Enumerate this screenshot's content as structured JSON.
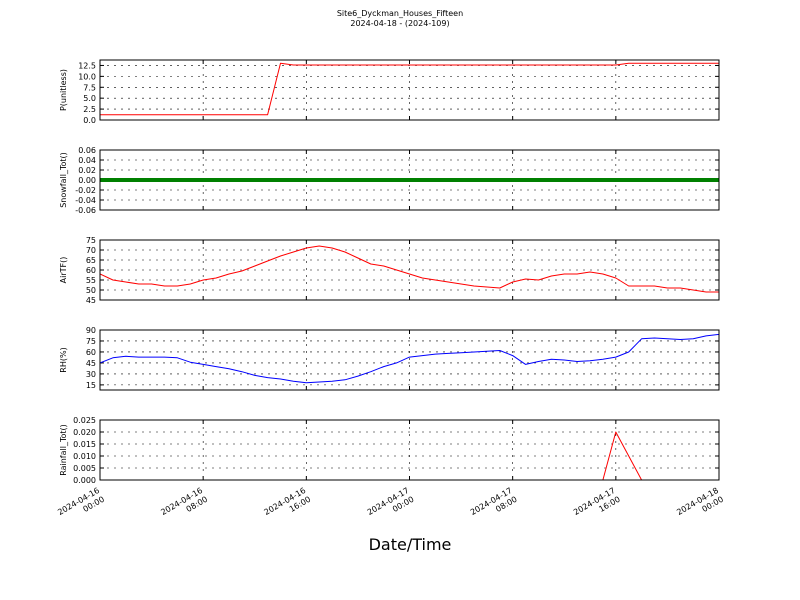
{
  "chart_data": [
    {
      "type": "line",
      "title": "Site6_Dyckman_Houses_Fifteen",
      "subtitle": "2024-04-18 - (2024-109)",
      "ylabel": "P(unitless)",
      "ylim": [
        0,
        13.75
      ],
      "yticks": [
        {
          "value": 0,
          "label": "0.0"
        },
        2.5,
        {
          "value": 5,
          "label": "5.0"
        },
        7.5,
        {
          "value": 10,
          "label": "10.0"
        },
        12.5
      ],
      "grid": true,
      "x": [
        "2024-04-16 00:00",
        "2024-04-16 01:00",
        "2024-04-16 02:00",
        "2024-04-16 03:00",
        "2024-04-16 04:00",
        "2024-04-16 05:00",
        "2024-04-16 06:00",
        "2024-04-16 07:00",
        "2024-04-16 08:00",
        "2024-04-16 09:00",
        "2024-04-16 10:00",
        "2024-04-16 11:00",
        "2024-04-16 12:00",
        "2024-04-16 13:00",
        "2024-04-16 14:00",
        "2024-04-16 15:00",
        "2024-04-16 16:00",
        "2024-04-16 17:00",
        "2024-04-16 18:00",
        "2024-04-16 19:00",
        "2024-04-16 20:00",
        "2024-04-16 21:00",
        "2024-04-16 22:00",
        "2024-04-16 23:00",
        "2024-04-17 00:00",
        "2024-04-17 01:00",
        "2024-04-17 02:00",
        "2024-04-17 03:00",
        "2024-04-17 04:00",
        "2024-04-17 05:00",
        "2024-04-17 06:00",
        "2024-04-17 07:00",
        "2024-04-17 08:00",
        "2024-04-17 09:00",
        "2024-04-17 10:00",
        "2024-04-17 11:00",
        "2024-04-17 12:00",
        "2024-04-17 13:00",
        "2024-04-17 14:00",
        "2024-04-17 15:00",
        "2024-04-17 16:00",
        "2024-04-17 17:00",
        "2024-04-17 18:00",
        "2024-04-17 19:00",
        "2024-04-17 20:00",
        "2024-04-17 21:00",
        "2024-04-17 22:00",
        "2024-04-17 23:00",
        "2024-04-18 00:00"
      ],
      "series": [
        {
          "color": "#ff0000",
          "values": [
            1.2,
            1.2,
            1.2,
            1.2,
            1.2,
            1.2,
            1.2,
            1.2,
            1.2,
            1.2,
            1.2,
            1.2,
            1.2,
            1.2,
            13.0,
            12.6,
            12.6,
            12.6,
            12.6,
            12.6,
            12.6,
            12.6,
            12.6,
            12.6,
            12.6,
            12.6,
            12.6,
            12.6,
            12.6,
            12.6,
            12.6,
            12.6,
            12.6,
            12.6,
            12.6,
            12.6,
            12.6,
            12.6,
            12.6,
            12.6,
            12.6,
            13.0,
            13.0,
            13.0,
            13.0,
            13.0,
            13.0,
            13.0,
            13.0
          ]
        }
      ]
    },
    {
      "type": "line",
      "ylabel": "Snowfall_Tot()",
      "ylim": [
        -0.06,
        0.06
      ],
      "yticks": [
        -0.06,
        -0.04,
        -0.02,
        {
          "value": 0,
          "label": "0.00"
        },
        0.02,
        0.04,
        0.06
      ],
      "grid": true,
      "x": [
        "2024-04-16 00:00",
        "2024-04-16 01:00",
        "2024-04-16 02:00",
        "2024-04-16 03:00",
        "2024-04-16 04:00",
        "2024-04-16 05:00",
        "2024-04-16 06:00",
        "2024-04-16 07:00",
        "2024-04-16 08:00",
        "2024-04-16 09:00",
        "2024-04-16 10:00",
        "2024-04-16 11:00",
        "2024-04-16 12:00",
        "2024-04-16 13:00",
        "2024-04-16 14:00",
        "2024-04-16 15:00",
        "2024-04-16 16:00",
        "2024-04-16 17:00",
        "2024-04-16 18:00",
        "2024-04-16 19:00",
        "2024-04-16 20:00",
        "2024-04-16 21:00",
        "2024-04-16 22:00",
        "2024-04-16 23:00",
        "2024-04-17 00:00",
        "2024-04-17 01:00",
        "2024-04-17 02:00",
        "2024-04-17 03:00",
        "2024-04-17 04:00",
        "2024-04-17 05:00",
        "2024-04-17 06:00",
        "2024-04-17 07:00",
        "2024-04-17 08:00",
        "2024-04-17 09:00",
        "2024-04-17 10:00",
        "2024-04-17 11:00",
        "2024-04-17 12:00",
        "2024-04-17 13:00",
        "2024-04-17 14:00",
        "2024-04-17 15:00",
        "2024-04-17 16:00",
        "2024-04-17 17:00",
        "2024-04-17 18:00",
        "2024-04-17 19:00",
        "2024-04-17 20:00",
        "2024-04-17 21:00",
        "2024-04-17 22:00",
        "2024-04-17 23:00",
        "2024-04-18 00:00"
      ],
      "series": [
        {
          "color": "#008000",
          "values": [
            0,
            0,
            0,
            0,
            0,
            0,
            0,
            0,
            0,
            0,
            0,
            0,
            0,
            0,
            0,
            0,
            0,
            0,
            0,
            0,
            0,
            0,
            0,
            0,
            0,
            0,
            0,
            0,
            0,
            0,
            0,
            0,
            0,
            0,
            0,
            0,
            0,
            0,
            0,
            0,
            0,
            0,
            0,
            0,
            0,
            0,
            0,
            0,
            0
          ]
        }
      ]
    },
    {
      "type": "line",
      "ylabel": "AirTF()",
      "ylim": [
        45,
        75
      ],
      "yticks": [
        45,
        50,
        55,
        60,
        65,
        70,
        75
      ],
      "grid": true,
      "x": [
        "2024-04-16 00:00",
        "2024-04-16 01:00",
        "2024-04-16 02:00",
        "2024-04-16 03:00",
        "2024-04-16 04:00",
        "2024-04-16 05:00",
        "2024-04-16 06:00",
        "2024-04-16 07:00",
        "2024-04-16 08:00",
        "2024-04-16 09:00",
        "2024-04-16 10:00",
        "2024-04-16 11:00",
        "2024-04-16 12:00",
        "2024-04-16 13:00",
        "2024-04-16 14:00",
        "2024-04-16 15:00",
        "2024-04-16 16:00",
        "2024-04-16 17:00",
        "2024-04-16 18:00",
        "2024-04-16 19:00",
        "2024-04-16 20:00",
        "2024-04-16 21:00",
        "2024-04-16 22:00",
        "2024-04-16 23:00",
        "2024-04-17 00:00",
        "2024-04-17 01:00",
        "2024-04-17 02:00",
        "2024-04-17 03:00",
        "2024-04-17 04:00",
        "2024-04-17 05:00",
        "2024-04-17 06:00",
        "2024-04-17 07:00",
        "2024-04-17 08:00",
        "2024-04-17 09:00",
        "2024-04-17 10:00",
        "2024-04-17 11:00",
        "2024-04-17 12:00",
        "2024-04-17 13:00",
        "2024-04-17 14:00",
        "2024-04-17 15:00",
        "2024-04-17 16:00",
        "2024-04-17 17:00",
        "2024-04-17 18:00",
        "2024-04-17 19:00",
        "2024-04-17 20:00",
        "2024-04-17 21:00",
        "2024-04-17 22:00",
        "2024-04-17 23:00",
        "2024-04-18 00:00"
      ],
      "series": [
        {
          "color": "#ff0000",
          "values": [
            58,
            55,
            54,
            53,
            53,
            52,
            52,
            53,
            55,
            56,
            58,
            59.5,
            62,
            64.5,
            67,
            69,
            71,
            72,
            71,
            69,
            66,
            63,
            62,
            60,
            58,
            56,
            55,
            54,
            53,
            52,
            51.5,
            51,
            54,
            55.5,
            55,
            57,
            58,
            58,
            59,
            58,
            56,
            52,
            52,
            52,
            51,
            51,
            50,
            49,
            49
          ]
        }
      ]
    },
    {
      "type": "line",
      "ylabel": "RH(%)",
      "ylim": [
        8,
        90
      ],
      "yticks": [
        15,
        30,
        45,
        60,
        75,
        90
      ],
      "grid": true,
      "x": [
        "2024-04-16 00:00",
        "2024-04-16 01:00",
        "2024-04-16 02:00",
        "2024-04-16 03:00",
        "2024-04-16 04:00",
        "2024-04-16 05:00",
        "2024-04-16 06:00",
        "2024-04-16 07:00",
        "2024-04-16 08:00",
        "2024-04-16 09:00",
        "2024-04-16 10:00",
        "2024-04-16 11:00",
        "2024-04-16 12:00",
        "2024-04-16 13:00",
        "2024-04-16 14:00",
        "2024-04-16 15:00",
        "2024-04-16 16:00",
        "2024-04-16 17:00",
        "2024-04-16 18:00",
        "2024-04-16 19:00",
        "2024-04-16 20:00",
        "2024-04-16 21:00",
        "2024-04-16 22:00",
        "2024-04-16 23:00",
        "2024-04-17 00:00",
        "2024-04-17 01:00",
        "2024-04-17 02:00",
        "2024-04-17 03:00",
        "2024-04-17 04:00",
        "2024-04-17 05:00",
        "2024-04-17 06:00",
        "2024-04-17 07:00",
        "2024-04-17 08:00",
        "2024-04-17 09:00",
        "2024-04-17 10:00",
        "2024-04-17 11:00",
        "2024-04-17 12:00",
        "2024-04-17 13:00",
        "2024-04-17 14:00",
        "2024-04-17 15:00",
        "2024-04-17 16:00",
        "2024-04-17 17:00",
        "2024-04-17 18:00",
        "2024-04-17 19:00",
        "2024-04-17 20:00",
        "2024-04-17 21:00",
        "2024-04-17 22:00",
        "2024-04-17 23:00",
        "2024-04-18 00:00"
      ],
      "series": [
        {
          "color": "#0000ff",
          "values": [
            45,
            52,
            54,
            53,
            53,
            53,
            52,
            46,
            43,
            40,
            37,
            33,
            28,
            25,
            23,
            20,
            18,
            19,
            20,
            22,
            27,
            33,
            40,
            45,
            53,
            55,
            57,
            58,
            59,
            60,
            61,
            62,
            55,
            43,
            47,
            50,
            49,
            47,
            48,
            50,
            53,
            60,
            78,
            79,
            78,
            77,
            78,
            82,
            84
          ]
        }
      ]
    },
    {
      "type": "line",
      "ylabel": "Rainfall_Tot()",
      "xlabel": "Date/Time",
      "ylim": [
        0,
        0.025
      ],
      "yticks": [
        {
          "value": 0,
          "label": "0.000"
        },
        0.005,
        {
          "value": 0.01,
          "label": "0.010"
        },
        0.015,
        {
          "value": 0.02,
          "label": "0.020"
        },
        0.025
      ],
      "grid": true,
      "xlim": [
        "2024-04-16 00:00",
        "2024-04-18 00:00"
      ],
      "xticks": [
        "2024-04-16 00:00",
        "2024-04-16 08:00",
        "2024-04-16 16:00",
        "2024-04-17 00:00",
        "2024-04-17 08:00",
        "2024-04-17 16:00",
        "2024-04-18 00:00"
      ],
      "x": [
        "2024-04-16 00:00",
        "2024-04-16 01:00",
        "2024-04-16 02:00",
        "2024-04-16 03:00",
        "2024-04-16 04:00",
        "2024-04-16 05:00",
        "2024-04-16 06:00",
        "2024-04-16 07:00",
        "2024-04-16 08:00",
        "2024-04-16 09:00",
        "2024-04-16 10:00",
        "2024-04-16 11:00",
        "2024-04-16 12:00",
        "2024-04-16 13:00",
        "2024-04-16 14:00",
        "2024-04-16 15:00",
        "2024-04-16 16:00",
        "2024-04-16 17:00",
        "2024-04-16 18:00",
        "2024-04-16 19:00",
        "2024-04-16 20:00",
        "2024-04-16 21:00",
        "2024-04-16 22:00",
        "2024-04-16 23:00",
        "2024-04-17 00:00",
        "2024-04-17 01:00",
        "2024-04-17 02:00",
        "2024-04-17 03:00",
        "2024-04-17 04:00",
        "2024-04-17 05:00",
        "2024-04-17 06:00",
        "2024-04-17 07:00",
        "2024-04-17 08:00",
        "2024-04-17 09:00",
        "2024-04-17 10:00",
        "2024-04-17 11:00",
        "2024-04-17 12:00",
        "2024-04-17 13:00",
        "2024-04-17 14:00",
        "2024-04-17 15:00",
        "2024-04-17 16:00",
        "2024-04-17 17:00",
        "2024-04-17 18:00",
        "2024-04-17 19:00",
        "2024-04-17 20:00",
        "2024-04-17 21:00",
        "2024-04-17 22:00",
        "2024-04-17 23:00",
        "2024-04-18 00:00"
      ],
      "series": [
        {
          "color": "#ff0000",
          "values": [
            0,
            0,
            0,
            0,
            0,
            0,
            0,
            0,
            0,
            0,
            0,
            0,
            0,
            0,
            0,
            0,
            0,
            0,
            0,
            0,
            0,
            0,
            0,
            0,
            0,
            0,
            0,
            0,
            0,
            0,
            0,
            0,
            0,
            0,
            0,
            0,
            0,
            0,
            0,
            0,
            0.02,
            0.01,
            0,
            0,
            0,
            0,
            0,
            0,
            0
          ]
        }
      ]
    }
  ]
}
